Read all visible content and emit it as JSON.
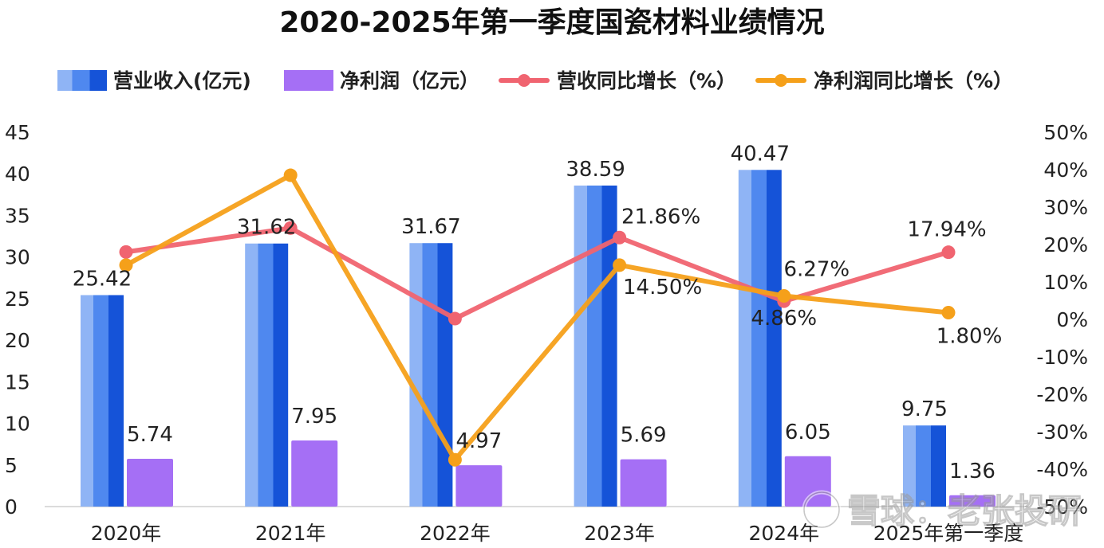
{
  "chart_data": {
    "type": "bar",
    "title": "2020-2025年第一季度国瓷材料业绩情况",
    "categories": [
      "2020年",
      "2021年",
      "2022年",
      "2023年",
      "2024年",
      "2025年第一季度"
    ],
    "series": [
      {
        "name": "营业收入(亿元)",
        "kind": "bar",
        "axis": "left",
        "color": "#2e6ee8",
        "values": [
          25.42,
          31.62,
          31.67,
          38.59,
          40.47,
          9.75
        ],
        "labels": [
          "25.42",
          "31.62",
          "31.67",
          "38.59",
          "40.47",
          "9.75"
        ]
      },
      {
        "name": "净利润（亿元）",
        "kind": "bar",
        "axis": "left",
        "color": "#a56ff5",
        "values": [
          5.74,
          7.95,
          4.97,
          5.69,
          6.05,
          1.36
        ],
        "labels": [
          "5.74",
          "7.95",
          "4.97",
          "5.69",
          "6.05",
          "1.36"
        ]
      },
      {
        "name": "营收同比增长（%）",
        "kind": "line",
        "axis": "right",
        "color": "#f06470",
        "values": [
          18,
          24.4,
          0.2,
          21.86,
          4.86,
          17.94
        ],
        "labels": [
          "",
          "",
          "",
          "21.86%",
          "4.86%",
          "17.94%"
        ]
      },
      {
        "name": "净利润同比增长（%）",
        "kind": "line",
        "axis": "right",
        "color": "#f5a01a",
        "values": [
          14.5,
          38.5,
          -37.5,
          14.5,
          6.27,
          1.8
        ],
        "labels": [
          "",
          "",
          "",
          "14.50%",
          "6.27%",
          "1.80%"
        ]
      }
    ],
    "y_left": {
      "min": 0,
      "max": 45,
      "ticks": [
        "0",
        "5",
        "10",
        "15",
        "20",
        "25",
        "30",
        "35",
        "40",
        "45"
      ]
    },
    "y_right": {
      "min": -50,
      "max": 50,
      "ticks": [
        "-50%",
        "-40%",
        "-30%",
        "-20%",
        "-10%",
        "0%",
        "10%",
        "20%",
        "30%",
        "40%",
        "50%"
      ]
    },
    "legend_position": "top",
    "grid": false
  },
  "watermark": "雪球：老张投研"
}
